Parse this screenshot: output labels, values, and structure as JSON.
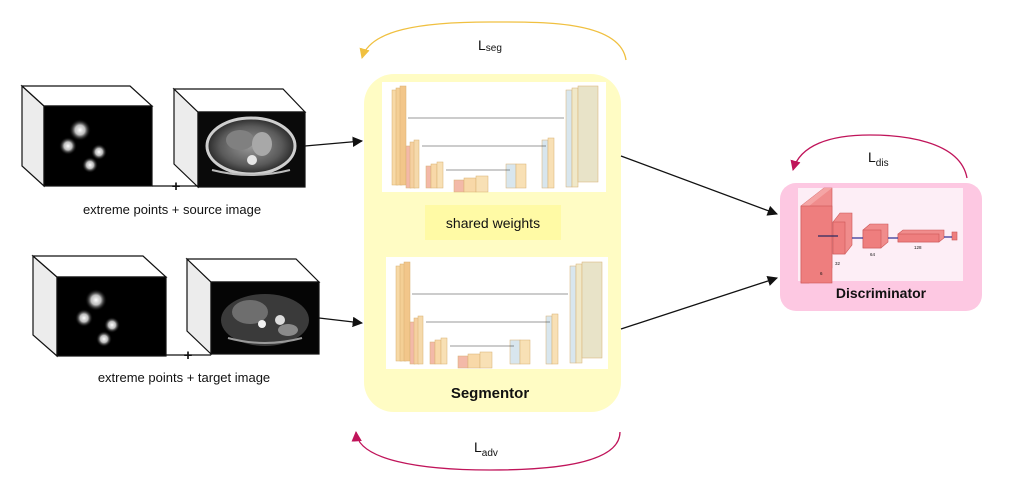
{
  "inputs": {
    "source_caption": "extreme points + source image",
    "target_caption": "extreme points + target image",
    "plus": "+"
  },
  "segmentor": {
    "title": "Segmentor",
    "shared_label": "shared weights"
  },
  "discriminator": {
    "title": "Discriminator",
    "channels": [
      "6",
      "32",
      "64",
      "128"
    ]
  },
  "losses": {
    "seg_main": "L",
    "seg_sub": "seg",
    "dis_main": "L",
    "dis_sub": "dis",
    "adv_main": "L",
    "adv_sub": "adv"
  },
  "colors": {
    "segmentor_bg": "#fffcc4",
    "discriminator_bg": "#fdc8e2",
    "seg_loss_arrow": "#f0c040",
    "adv_loss_arrow": "#c0145a",
    "dis_loss_arrow": "#c0145a"
  }
}
